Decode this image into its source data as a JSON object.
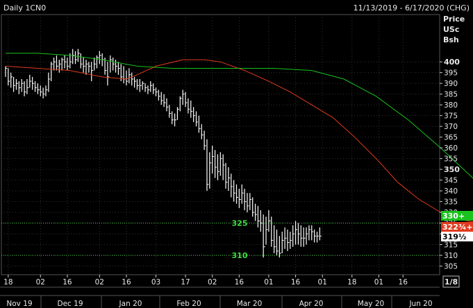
{
  "header": {
    "title": "Daily 1CN0",
    "date_range": "11/13/2019 - 6/17/2020 (CHG)"
  },
  "axis_title": [
    "Price",
    "USc",
    "Bsh"
  ],
  "page_indicator": "1/8",
  "colors": {
    "background": "#000000",
    "grid": "#333333",
    "bars": "#ffffff",
    "ma_fast": "#e03a1e",
    "ma_slow": "#19c21c",
    "level_line": "#4cd44c",
    "level_text": "#3ee03e"
  },
  "chart_data": {
    "type": "ohlc",
    "y_ticks": [
      305,
      310,
      315,
      320,
      325,
      330,
      335,
      340,
      345,
      350,
      355,
      360,
      365,
      370,
      375,
      380,
      385,
      390,
      395,
      400
    ],
    "y_bold_ticks": [
      350,
      400
    ],
    "ylim": [
      301,
      422
    ],
    "day_ticks": [
      "18",
      "02",
      "16",
      "02",
      "16",
      "03",
      "17",
      "02",
      "16",
      "01",
      "16",
      "01",
      "18",
      "01",
      "16"
    ],
    "month_labels": [
      "Nov 19",
      "Dec 19",
      "Jan 20",
      "Feb 20",
      "Mar 20",
      "Apr 20",
      "May 20",
      "Jun 20"
    ],
    "grid": true,
    "levels": [
      {
        "value": 325,
        "label": "325"
      },
      {
        "value": 310,
        "label": "310"
      }
    ],
    "price_badges": [
      {
        "label": "330+",
        "value": 330.25,
        "bg": "#19c21c",
        "fg": "#ffffff"
      },
      {
        "label": "322¾+",
        "value": 322.9,
        "bg": "#e03a1e",
        "fg": "#ffffff"
      },
      {
        "label": "319½",
        "value": 319.5,
        "bg": "#ffffff",
        "fg": "#000000"
      }
    ],
    "series": [
      {
        "name": "OHLC",
        "data": [
          [
            398,
            393,
            397
          ],
          [
            397,
            389,
            391
          ],
          [
            395,
            388,
            393
          ],
          [
            393,
            386,
            389
          ],
          [
            392,
            387,
            390
          ],
          [
            391,
            385,
            388
          ],
          [
            392,
            386,
            390
          ],
          [
            391,
            384,
            386
          ],
          [
            392,
            385,
            388
          ],
          [
            394,
            388,
            391
          ],
          [
            393,
            387,
            390
          ],
          [
            391,
            386,
            388
          ],
          [
            390,
            385,
            387
          ],
          [
            389,
            384,
            386
          ],
          [
            388,
            383,
            385
          ],
          [
            389,
            384,
            387
          ],
          [
            395,
            386,
            392
          ],
          [
            400,
            391,
            399
          ],
          [
            402,
            396,
            400
          ],
          [
            403,
            396,
            398
          ],
          [
            401,
            395,
            399
          ],
          [
            402,
            396,
            401
          ],
          [
            403,
            397,
            400
          ],
          [
            402,
            396,
            398
          ],
          [
            404,
            397,
            400
          ],
          [
            406,
            399,
            403
          ],
          [
            405,
            399,
            401
          ],
          [
            406,
            400,
            404
          ],
          [
            404,
            397,
            399
          ],
          [
            402,
            395,
            398
          ],
          [
            401,
            394,
            399
          ],
          [
            400,
            395,
            398
          ],
          [
            400,
            391,
            396
          ],
          [
            402,
            396,
            399
          ],
          [
            403,
            397,
            402
          ],
          [
            405,
            399,
            403
          ],
          [
            404,
            398,
            401
          ],
          [
            402,
            394,
            396
          ],
          [
            400,
            389,
            393
          ],
          [
            403,
            395,
            401
          ],
          [
            402,
            396,
            399
          ],
          [
            401,
            395,
            398
          ],
          [
            400,
            394,
            397
          ],
          [
            399,
            391,
            393
          ],
          [
            398,
            390,
            392
          ],
          [
            396,
            389,
            391
          ],
          [
            397,
            390,
            394
          ],
          [
            395,
            389,
            392
          ],
          [
            393,
            388,
            391
          ],
          [
            392,
            387,
            389
          ],
          [
            392,
            386,
            389
          ],
          [
            391,
            387,
            390
          ],
          [
            390,
            386,
            388
          ],
          [
            389,
            385,
            387
          ],
          [
            391,
            386,
            389
          ],
          [
            390,
            385,
            387
          ],
          [
            388,
            384,
            386
          ],
          [
            387,
            382,
            384
          ],
          [
            386,
            380,
            382
          ],
          [
            385,
            379,
            381
          ],
          [
            383,
            377,
            379
          ],
          [
            380,
            374,
            376
          ],
          [
            377,
            371,
            373
          ],
          [
            376,
            370,
            373
          ],
          [
            379,
            373,
            378
          ],
          [
            384,
            377,
            383
          ],
          [
            387,
            380,
            385
          ],
          [
            386,
            379,
            381
          ],
          [
            383,
            376,
            378
          ],
          [
            382,
            374,
            377
          ],
          [
            379,
            372,
            375
          ],
          [
            377,
            370,
            372
          ],
          [
            375,
            367,
            369
          ],
          [
            371,
            364,
            366
          ],
          [
            368,
            359,
            361
          ],
          [
            364,
            340,
            343
          ],
          [
            358,
            341,
            353
          ],
          [
            361,
            348,
            356
          ],
          [
            359,
            346,
            351
          ],
          [
            357,
            345,
            349
          ],
          [
            358,
            347,
            355
          ],
          [
            357,
            345,
            352
          ],
          [
            353,
            341,
            344
          ],
          [
            351,
            340,
            346
          ],
          [
            348,
            337,
            342
          ],
          [
            345,
            335,
            339
          ],
          [
            343,
            334,
            337
          ],
          [
            341,
            332,
            336
          ],
          [
            343,
            334,
            339
          ],
          [
            341,
            331,
            335
          ],
          [
            339,
            330,
            333
          ],
          [
            339,
            331,
            336
          ],
          [
            337,
            328,
            330
          ],
          [
            334,
            326,
            329
          ],
          [
            333,
            323,
            326
          ],
          [
            331,
            321,
            325
          ],
          [
            329,
            309,
            314
          ],
          [
            328,
            315,
            322
          ],
          [
            331,
            321,
            326
          ],
          [
            328,
            314,
            317
          ],
          [
            324,
            311,
            314
          ],
          [
            322,
            310,
            312
          ],
          [
            319,
            309,
            311
          ],
          [
            321,
            311,
            317
          ],
          [
            323,
            313,
            318
          ],
          [
            322,
            312,
            316
          ],
          [
            321,
            313,
            317
          ],
          [
            324,
            314,
            320
          ],
          [
            326,
            315,
            322
          ],
          [
            325,
            315,
            320
          ],
          [
            324,
            314,
            318
          ],
          [
            323,
            314,
            318
          ],
          [
            323,
            315,
            320
          ],
          [
            324,
            317,
            322
          ],
          [
            324,
            317,
            321
          ],
          [
            322,
            316,
            319
          ],
          [
            321,
            316,
            319
          ],
          [
            323,
            317,
            319
          ]
        ]
      },
      {
        "name": "MA fast",
        "values": [
          [
            0,
            398
          ],
          [
            12,
            397
          ],
          [
            24,
            396
          ],
          [
            36,
            393
          ],
          [
            45,
            392
          ],
          [
            49,
            394
          ],
          [
            56,
            398
          ],
          [
            66,
            401
          ],
          [
            74,
            401
          ],
          [
            80,
            400
          ],
          [
            89,
            396
          ],
          [
            98,
            391
          ],
          [
            106,
            386
          ],
          [
            114,
            380
          ],
          [
            122,
            374
          ],
          [
            130,
            365
          ],
          [
            138,
            355
          ],
          [
            146,
            344
          ],
          [
            154,
            336
          ],
          [
            162,
            330
          ],
          [
            172,
            326
          ],
          [
            182,
            324
          ],
          [
            190,
            323
          ],
          [
            194,
            322.9
          ]
        ]
      },
      {
        "name": "MA slow",
        "values": [
          [
            0,
            404
          ],
          [
            12,
            404
          ],
          [
            24,
            403
          ],
          [
            36,
            401
          ],
          [
            49,
            398
          ],
          [
            62,
            397
          ],
          [
            74,
            397
          ],
          [
            86,
            397
          ],
          [
            100,
            397
          ],
          [
            114,
            396
          ],
          [
            126,
            392
          ],
          [
            138,
            384
          ],
          [
            150,
            373
          ],
          [
            162,
            360
          ],
          [
            174,
            346
          ],
          [
            186,
            334
          ],
          [
            194,
            330.25
          ]
        ]
      }
    ]
  }
}
